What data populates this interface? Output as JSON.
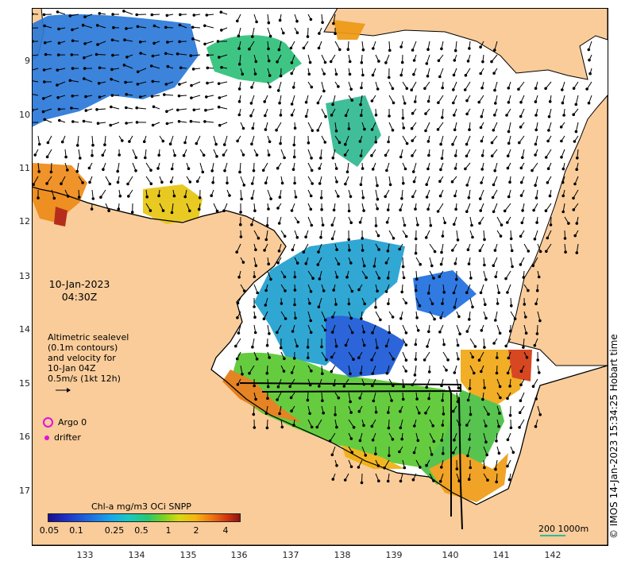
{
  "date": "10-Jan-2023",
  "time": "04:30Z",
  "velocity_note": [
    "Altimetric sealevel",
    "(0.1m contours)",
    "and velocity for",
    "10-Jan 04Z",
    "0.5m/s (1kt 12h)"
  ],
  "legend": {
    "argo": "Argo 0",
    "drifter": "drifter"
  },
  "colorbar": {
    "title": "Chl-a mg/m3 OCi SNPP",
    "ticks": [
      "0.05",
      "0.1",
      "0.25",
      "0.5",
      "1",
      "2",
      "4"
    ]
  },
  "credit": "© IMOS 14-Jan-2023 15:34:25 Hobart time",
  "scale_label": "200 1000m",
  "axes": {
    "lat_ticks": [
      "9",
      "10",
      "11",
      "12",
      "13",
      "14",
      "15",
      "16",
      "17"
    ],
    "lon_ticks": [
      "133",
      "134",
      "135",
      "136",
      "137",
      "138",
      "139",
      "140",
      "141",
      "142"
    ]
  },
  "colors": {
    "land": "#f9cc9a",
    "ocean": "#ffffff",
    "arrow": "#000000",
    "marker": "#e010e0"
  }
}
